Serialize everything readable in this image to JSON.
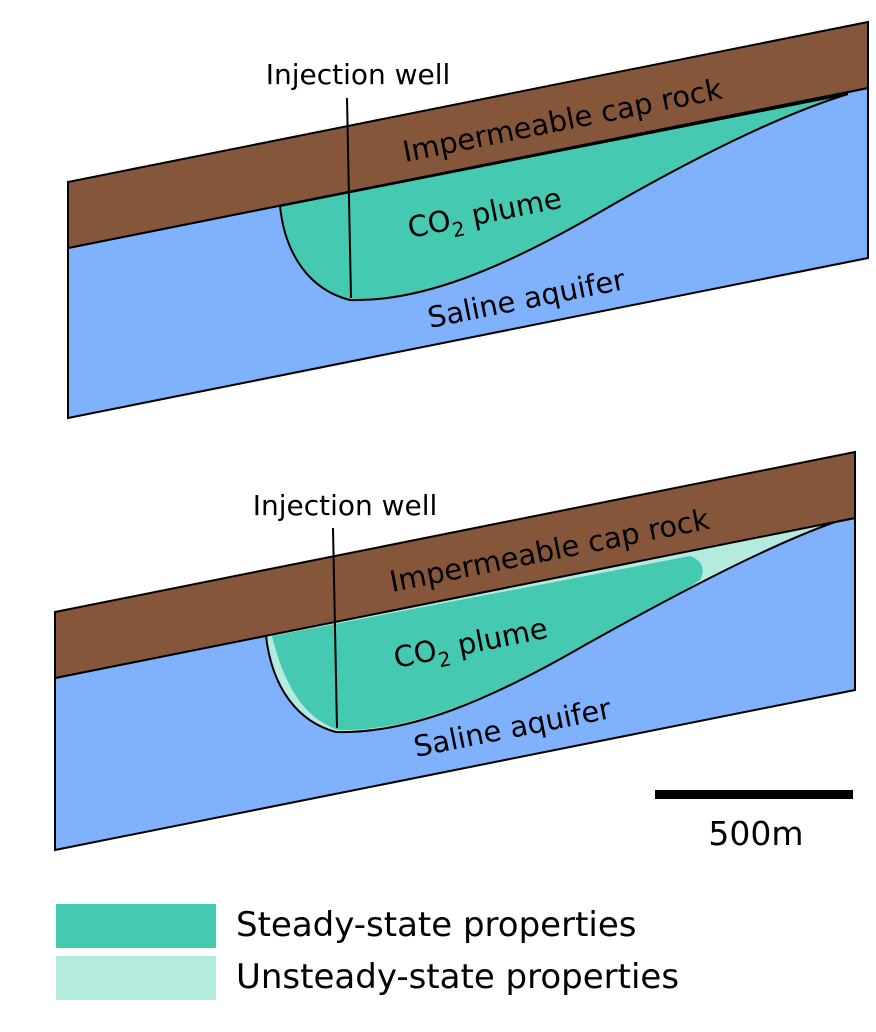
{
  "panels": [
    {
      "well_label": "Injection well",
      "cap_rock_label": "Impermeable cap rock",
      "plume_label_main": "CO",
      "plume_label_sub": "2",
      "plume_label_rest": " plume",
      "aquifer_label": "Saline aquifer"
    },
    {
      "well_label": "Injection well",
      "cap_rock_label": "Impermeable cap rock",
      "plume_label_main": "CO",
      "plume_label_sub": "2",
      "plume_label_rest": " plume",
      "aquifer_label": "Saline aquifer"
    }
  ],
  "scale_bar": {
    "label": "500m"
  },
  "legend": {
    "items": [
      {
        "label": "Steady-state properties",
        "color": "#45c9b0"
      },
      {
        "label": "Unsteady-state properties",
        "color": "#b5eade"
      }
    ]
  },
  "colors": {
    "cap_rock": "#86563a",
    "aquifer": "#7fb1fc",
    "steady": "#45c9b0",
    "unsteady": "#b5eade"
  }
}
